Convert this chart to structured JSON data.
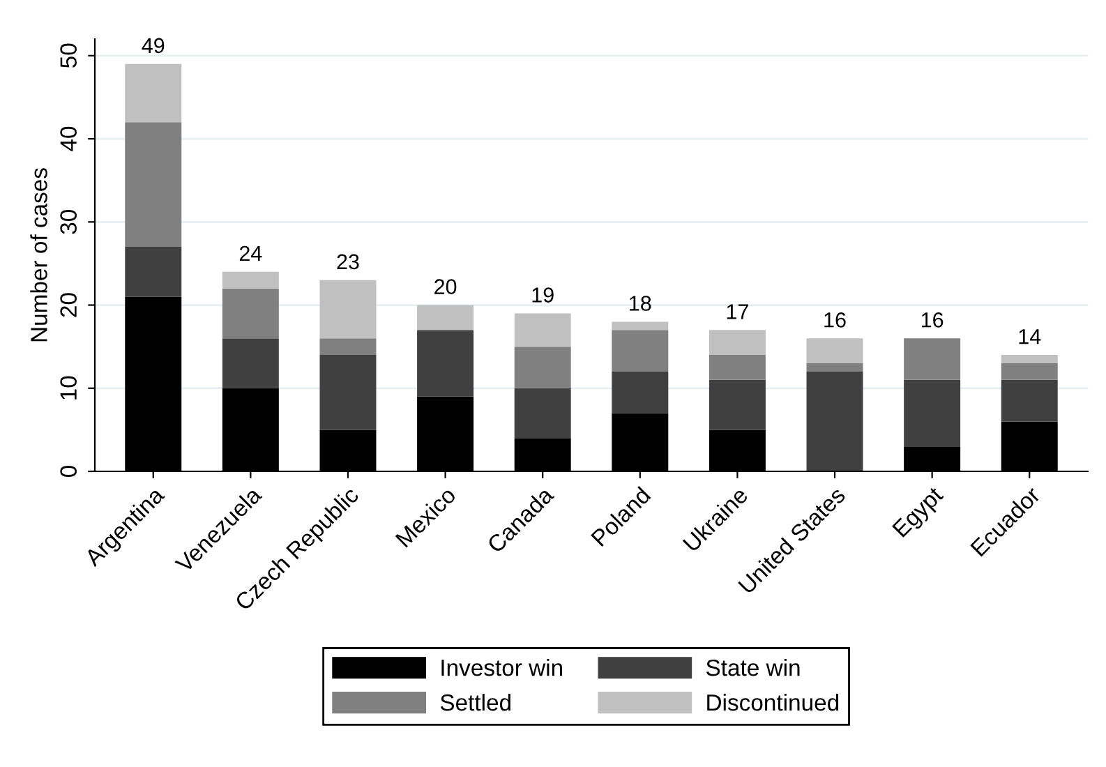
{
  "chart_data": {
    "type": "bar",
    "stacked": true,
    "ylabel": "Number of cases",
    "categories": [
      "Argentina",
      "Venezuela",
      "Czech Republic",
      "Mexico",
      "Canada",
      "Poland",
      "Ukraine",
      "United States",
      "Egypt",
      "Ecuador"
    ],
    "series": [
      {
        "name": "Investor win",
        "color": "#000000",
        "values": [
          21,
          10,
          5,
          9,
          4,
          7,
          5,
          0,
          3,
          6
        ]
      },
      {
        "name": "State win",
        "color": "#404040",
        "values": [
          6,
          6,
          9,
          8,
          6,
          5,
          6,
          12,
          8,
          5
        ]
      },
      {
        "name": "Settled",
        "color": "#808080",
        "values": [
          15,
          6,
          2,
          0,
          5,
          5,
          3,
          1,
          5,
          2
        ]
      },
      {
        "name": "Discontinued",
        "color": "#c0c0c0",
        "values": [
          7,
          2,
          7,
          3,
          4,
          1,
          3,
          3,
          0,
          1
        ]
      }
    ],
    "totals": [
      "49",
      "24",
      "23",
      "20",
      "19",
      "18",
      "17",
      "16",
      "16",
      "14"
    ],
    "ylim": [
      0,
      52
    ],
    "yticks": [
      0,
      10,
      20,
      30,
      40,
      50
    ],
    "grid": "y",
    "legend": "bottom"
  }
}
